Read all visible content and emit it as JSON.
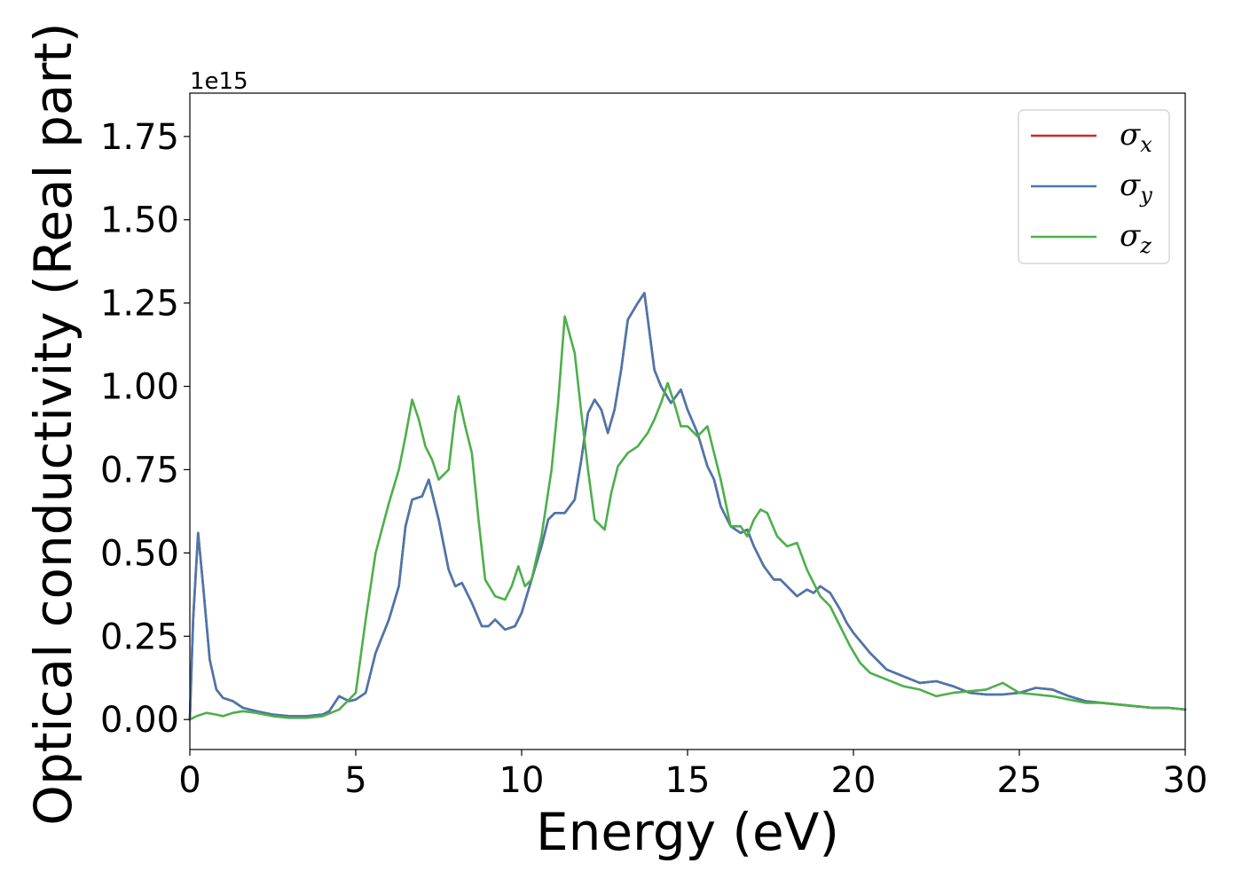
{
  "chart_data": {
    "type": "line",
    "xlabel": "Energy (eV)",
    "ylabel": "Optical conductivity (Real part)",
    "y_offset_label": "1e15",
    "xlim": [
      0,
      30
    ],
    "ylim": [
      -0.09,
      1.88
    ],
    "x_ticks": [
      0,
      5,
      10,
      15,
      20,
      25,
      30
    ],
    "x_tick_labels": [
      "0",
      "5",
      "10",
      "15",
      "20",
      "25",
      "30"
    ],
    "y_ticks": [
      0.0,
      0.25,
      0.5,
      0.75,
      1.0,
      1.25,
      1.5,
      1.75
    ],
    "y_tick_labels": [
      "0.00",
      "0.25",
      "0.50",
      "0.75",
      "1.00",
      "1.25",
      "1.50",
      "1.75"
    ],
    "grid": false,
    "legend_position": "top-right",
    "series": [
      {
        "name": "σ",
        "subscript": "x",
        "color": "#d62728",
        "x": [
          0,
          0.1,
          0.25,
          0.4,
          0.6,
          0.8,
          1.0,
          1.3,
          1.6,
          2.0,
          2.5,
          3.0,
          3.5,
          4.0,
          4.2,
          4.5,
          4.8,
          5.0,
          5.3,
          5.6,
          6.0,
          6.3,
          6.5,
          6.7,
          7.0,
          7.2,
          7.5,
          7.8,
          8.0,
          8.2,
          8.5,
          8.8,
          9.0,
          9.2,
          9.5,
          9.8,
          10.0,
          10.3,
          10.6,
          10.8,
          11.0,
          11.3,
          11.6,
          11.8,
          12.0,
          12.2,
          12.4,
          12.6,
          12.8,
          13.0,
          13.2,
          13.5,
          13.7,
          14.0,
          14.2,
          14.5,
          14.8,
          15.0,
          15.3,
          15.6,
          15.8,
          16.0,
          16.3,
          16.6,
          16.8,
          17.0,
          17.3,
          17.6,
          17.8,
          18.0,
          18.3,
          18.6,
          18.8,
          19.0,
          19.3,
          19.6,
          19.8,
          20.0,
          20.5,
          21.0,
          21.5,
          22.0,
          22.5,
          23.0,
          23.5,
          24.0,
          24.5,
          25.0,
          25.5,
          26.0,
          26.5,
          27.0,
          27.5,
          28.0,
          28.5,
          29.0,
          29.5,
          30.0
        ],
        "values": [
          0.0,
          0.3,
          0.56,
          0.4,
          0.18,
          0.09,
          0.065,
          0.055,
          0.035,
          0.025,
          0.015,
          0.01,
          0.01,
          0.015,
          0.025,
          0.07,
          0.055,
          0.06,
          0.08,
          0.2,
          0.3,
          0.4,
          0.58,
          0.66,
          0.67,
          0.72,
          0.6,
          0.45,
          0.4,
          0.41,
          0.35,
          0.28,
          0.28,
          0.3,
          0.27,
          0.28,
          0.32,
          0.42,
          0.52,
          0.6,
          0.62,
          0.62,
          0.66,
          0.78,
          0.92,
          0.96,
          0.93,
          0.86,
          0.93,
          1.05,
          1.2,
          1.25,
          1.28,
          1.05,
          1.0,
          0.95,
          0.99,
          0.93,
          0.86,
          0.76,
          0.72,
          0.64,
          0.58,
          0.56,
          0.57,
          0.52,
          0.46,
          0.42,
          0.42,
          0.4,
          0.37,
          0.39,
          0.38,
          0.4,
          0.38,
          0.33,
          0.29,
          0.26,
          0.2,
          0.15,
          0.13,
          0.11,
          0.115,
          0.1,
          0.08,
          0.075,
          0.075,
          0.08,
          0.095,
          0.09,
          0.07,
          0.055,
          0.05,
          0.045,
          0.04,
          0.035,
          0.035,
          0.03
        ]
      },
      {
        "name": "σ",
        "subscript": "y",
        "color": "#4a77ac",
        "x": [
          0,
          0.1,
          0.25,
          0.4,
          0.6,
          0.8,
          1.0,
          1.3,
          1.6,
          2.0,
          2.5,
          3.0,
          3.5,
          4.0,
          4.2,
          4.5,
          4.8,
          5.0,
          5.3,
          5.6,
          6.0,
          6.3,
          6.5,
          6.7,
          7.0,
          7.2,
          7.5,
          7.8,
          8.0,
          8.2,
          8.5,
          8.8,
          9.0,
          9.2,
          9.5,
          9.8,
          10.0,
          10.3,
          10.6,
          10.8,
          11.0,
          11.3,
          11.6,
          11.8,
          12.0,
          12.2,
          12.4,
          12.6,
          12.8,
          13.0,
          13.2,
          13.5,
          13.7,
          14.0,
          14.2,
          14.5,
          14.8,
          15.0,
          15.3,
          15.6,
          15.8,
          16.0,
          16.3,
          16.6,
          16.8,
          17.0,
          17.3,
          17.6,
          17.8,
          18.0,
          18.3,
          18.6,
          18.8,
          19.0,
          19.3,
          19.6,
          19.8,
          20.0,
          20.5,
          21.0,
          21.5,
          22.0,
          22.5,
          23.0,
          23.5,
          24.0,
          24.5,
          25.0,
          25.5,
          26.0,
          26.5,
          27.0,
          27.5,
          28.0,
          28.5,
          29.0,
          29.5,
          30.0
        ],
        "values": [
          0.0,
          0.3,
          0.56,
          0.4,
          0.18,
          0.09,
          0.065,
          0.055,
          0.035,
          0.025,
          0.015,
          0.01,
          0.01,
          0.015,
          0.025,
          0.07,
          0.055,
          0.06,
          0.08,
          0.2,
          0.3,
          0.4,
          0.58,
          0.66,
          0.67,
          0.72,
          0.6,
          0.45,
          0.4,
          0.41,
          0.35,
          0.28,
          0.28,
          0.3,
          0.27,
          0.28,
          0.32,
          0.42,
          0.52,
          0.6,
          0.62,
          0.62,
          0.66,
          0.78,
          0.92,
          0.96,
          0.93,
          0.86,
          0.93,
          1.05,
          1.2,
          1.25,
          1.28,
          1.05,
          1.0,
          0.95,
          0.99,
          0.93,
          0.86,
          0.76,
          0.72,
          0.64,
          0.58,
          0.56,
          0.57,
          0.52,
          0.46,
          0.42,
          0.42,
          0.4,
          0.37,
          0.39,
          0.38,
          0.4,
          0.38,
          0.33,
          0.29,
          0.26,
          0.2,
          0.15,
          0.13,
          0.11,
          0.115,
          0.1,
          0.08,
          0.075,
          0.075,
          0.08,
          0.095,
          0.09,
          0.07,
          0.055,
          0.05,
          0.045,
          0.04,
          0.035,
          0.035,
          0.03
        ]
      },
      {
        "name": "σ",
        "subscript": "z",
        "color": "#4daf4a",
        "x": [
          0,
          0.2,
          0.5,
          0.8,
          1.0,
          1.3,
          1.6,
          2.0,
          2.5,
          3.0,
          3.5,
          4.0,
          4.5,
          5.0,
          5.3,
          5.6,
          6.0,
          6.3,
          6.5,
          6.7,
          6.9,
          7.1,
          7.3,
          7.5,
          7.8,
          8.0,
          8.1,
          8.3,
          8.5,
          8.7,
          8.9,
          9.2,
          9.5,
          9.7,
          9.9,
          10.1,
          10.3,
          10.6,
          10.9,
          11.1,
          11.3,
          11.6,
          11.8,
          12.0,
          12.2,
          12.5,
          12.7,
          12.9,
          13.2,
          13.5,
          13.8,
          14.0,
          14.2,
          14.4,
          14.6,
          14.8,
          15.0,
          15.3,
          15.6,
          15.8,
          16.0,
          16.3,
          16.6,
          16.8,
          17.0,
          17.2,
          17.4,
          17.7,
          18.0,
          18.3,
          18.6,
          19.0,
          19.3,
          19.6,
          19.9,
          20.2,
          20.5,
          21.0,
          21.5,
          22.0,
          22.5,
          23.0,
          23.5,
          24.0,
          24.5,
          25.0,
          25.5,
          26.0,
          26.5,
          27.0,
          27.5,
          28.0,
          28.5,
          29.0,
          29.5,
          30.0
        ],
        "values": [
          0.0,
          0.01,
          0.02,
          0.015,
          0.01,
          0.02,
          0.025,
          0.02,
          0.01,
          0.005,
          0.005,
          0.01,
          0.03,
          0.08,
          0.3,
          0.5,
          0.65,
          0.75,
          0.85,
          0.96,
          0.9,
          0.82,
          0.78,
          0.72,
          0.75,
          0.92,
          0.97,
          0.88,
          0.8,
          0.6,
          0.42,
          0.37,
          0.36,
          0.4,
          0.46,
          0.4,
          0.42,
          0.55,
          0.75,
          0.95,
          1.21,
          1.1,
          0.92,
          0.75,
          0.6,
          0.57,
          0.68,
          0.76,
          0.8,
          0.82,
          0.86,
          0.9,
          0.95,
          1.01,
          0.95,
          0.88,
          0.88,
          0.85,
          0.88,
          0.8,
          0.72,
          0.58,
          0.58,
          0.55,
          0.6,
          0.63,
          0.62,
          0.55,
          0.52,
          0.53,
          0.45,
          0.37,
          0.34,
          0.28,
          0.22,
          0.17,
          0.14,
          0.12,
          0.1,
          0.09,
          0.07,
          0.08,
          0.085,
          0.09,
          0.11,
          0.08,
          0.075,
          0.07,
          0.06,
          0.05,
          0.05,
          0.045,
          0.04,
          0.035,
          0.035,
          0.03
        ]
      }
    ]
  }
}
